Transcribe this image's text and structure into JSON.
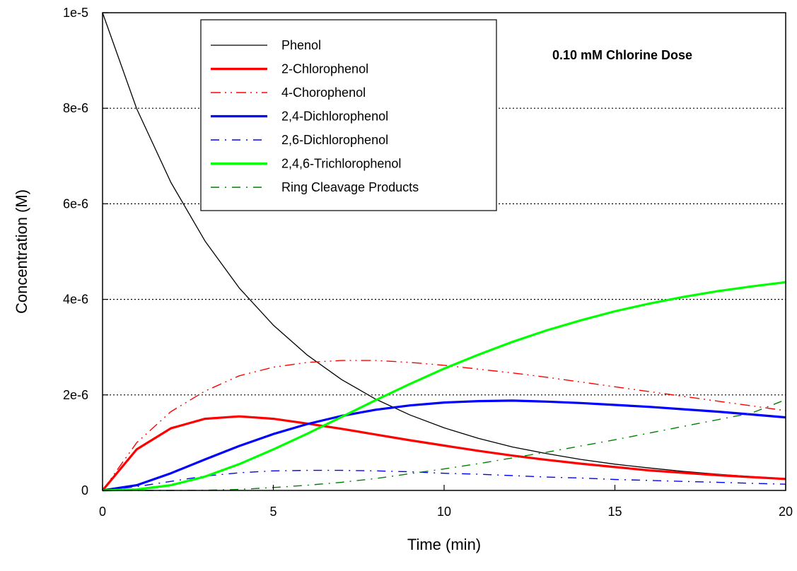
{
  "chart_data": {
    "type": "line",
    "title": "",
    "annotation": "0.10 mM Chlorine Dose",
    "xlabel": "Time (min)",
    "ylabel": "Concentration (M)",
    "xlim": [
      0,
      20
    ],
    "ylim": [
      0,
      1e-05
    ],
    "xticks": [
      0,
      5,
      10,
      15,
      20
    ],
    "xtick_labels": [
      "0",
      "5",
      "10",
      "15",
      "20"
    ],
    "yticks": [
      0,
      2e-06,
      4e-06,
      6e-06,
      8e-06,
      1e-05
    ],
    "ytick_labels": [
      "0",
      "2e-6",
      "4e-6",
      "6e-6",
      "8e-6",
      "1e-5"
    ],
    "grid": "horizontal dotted",
    "legend_position": "top-left",
    "x": [
      0,
      1,
      2,
      3,
      4,
      5,
      6,
      7,
      8,
      9,
      10,
      11,
      12,
      13,
      14,
      15,
      16,
      17,
      18,
      19,
      20
    ],
    "series": [
      {
        "name": "Phenol",
        "color": "#000000",
        "style": "solid-thin",
        "values": [
          1e-05,
          7.99e-06,
          6.45e-06,
          5.22e-06,
          4.24e-06,
          3.46e-06,
          2.83e-06,
          2.32e-06,
          1.91e-06,
          1.58e-06,
          1.31e-06,
          1.09e-06,
          9.1e-07,
          7.7e-07,
          6.5e-07,
          5.5e-07,
          4.7e-07,
          4e-07,
          3.4e-07,
          2.9e-07,
          2.5e-07
        ]
      },
      {
        "name": "2-Chlorophenol",
        "color": "#ff0000",
        "style": "solid-thick",
        "values": [
          0,
          8.6e-07,
          1.3e-06,
          1.5e-06,
          1.55e-06,
          1.5e-06,
          1.4e-06,
          1.29e-06,
          1.17e-06,
          1.05e-06,
          9.4e-07,
          8.3e-07,
          7.3e-07,
          6.4e-07,
          5.6e-07,
          4.9e-07,
          4.2e-07,
          3.7e-07,
          3.2e-07,
          2.8e-07,
          2.4e-07
        ]
      },
      {
        "name": "4-Chorophenol",
        "color": "#ff0000",
        "style": "dash-dot-dot",
        "values": [
          0,
          1e-06,
          1.65e-06,
          2.08e-06,
          2.4e-06,
          2.58e-06,
          2.68e-06,
          2.72e-06,
          2.72e-06,
          2.68e-06,
          2.62e-06,
          2.54e-06,
          2.46e-06,
          2.37e-06,
          2.27e-06,
          2.17e-06,
          2.07e-06,
          1.97e-06,
          1.87e-06,
          1.77e-06,
          1.67e-06
        ]
      },
      {
        "name": "2,4-Dichlorophenol",
        "color": "#0000ff",
        "style": "solid-thick",
        "values": [
          0,
          1.1e-07,
          3.6e-07,
          6.5e-07,
          9.3e-07,
          1.18e-06,
          1.39e-06,
          1.56e-06,
          1.69e-06,
          1.78e-06,
          1.84e-06,
          1.87e-06,
          1.88e-06,
          1.86e-06,
          1.83e-06,
          1.79e-06,
          1.75e-06,
          1.7e-06,
          1.65e-06,
          1.59e-06,
          1.53e-06
        ]
      },
      {
        "name": "2,6-Dichlorophenol",
        "color": "#0000ff",
        "style": "dash-dot",
        "values": [
          0,
          8e-08,
          1.9e-07,
          3e-07,
          3.7e-07,
          4.1e-07,
          4.2e-07,
          4.2e-07,
          4.1e-07,
          3.9e-07,
          3.6e-07,
          3.4e-07,
          3.1e-07,
          2.8e-07,
          2.6e-07,
          2.3e-07,
          2.1e-07,
          1.9e-07,
          1.7e-07,
          1.5e-07,
          1.3e-07
        ]
      },
      {
        "name": "2,4,6-Trichlorophenol",
        "color": "#00ff00",
        "style": "solid-thick",
        "values": [
          0,
          2e-08,
          1.1e-07,
          2.9e-07,
          5.5e-07,
          8.6e-07,
          1.19e-06,
          1.54e-06,
          1.89e-06,
          2.23e-06,
          2.55e-06,
          2.84e-06,
          3.11e-06,
          3.35e-06,
          3.56e-06,
          3.75e-06,
          3.91e-06,
          4.05e-06,
          4.17e-06,
          4.27e-06,
          4.36e-06
        ]
      },
      {
        "name": "Ring Cleavage Products",
        "color": "#008000",
        "style": "dash-dot",
        "values": [
          0,
          0,
          0,
          5e-09,
          2e-08,
          6e-08,
          1.1e-07,
          1.7e-07,
          2.5e-07,
          3.5e-07,
          4.5e-07,
          5.6e-07,
          6.8e-07,
          8e-07,
          9.3e-07,
          1.06e-06,
          1.2e-06,
          1.34e-06,
          1.48e-06,
          1.62e-06,
          1.9e-06
        ]
      }
    ]
  }
}
